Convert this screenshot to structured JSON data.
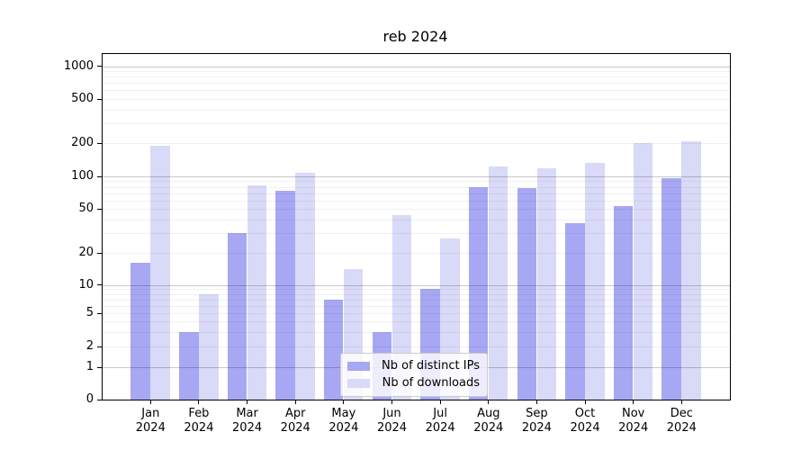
{
  "title": "reb 2024",
  "chart_data": {
    "type": "bar",
    "title": "reb 2024",
    "months": [
      "Jan",
      "Feb",
      "Mar",
      "Apr",
      "May",
      "Jun",
      "Jul",
      "Aug",
      "Sep",
      "Oct",
      "Nov",
      "Dec"
    ],
    "year_label": "2024",
    "series": [
      {
        "name": "Nb of distinct IPs",
        "color": "#a7a7f3",
        "values": [
          16,
          3,
          30,
          74,
          7,
          3,
          9,
          79,
          78,
          37,
          53,
          96
        ]
      },
      {
        "name": "Nb of downloads",
        "color": "#d9d9f8",
        "values": [
          190,
          8,
          83,
          107,
          14,
          44,
          27,
          124,
          119,
          132,
          200,
          208
        ]
      }
    ],
    "y_axis": {
      "scale": "symlog",
      "ticks": [
        0,
        1,
        2,
        5,
        10,
        20,
        50,
        100,
        200,
        500,
        1000
      ],
      "ylim": [
        0,
        1300
      ]
    },
    "x_axis": {
      "tick_line1": "month",
      "tick_line2": "2024"
    },
    "legend": {
      "position": "lower center",
      "entries": [
        "Nb of distinct IPs",
        "Nb of downloads"
      ]
    },
    "grid": {
      "major_color": "#c9c9c9",
      "minor_color": "#ebebeb",
      "major_lines": [
        1,
        10,
        100,
        1000
      ],
      "minor_lines": [
        2,
        3,
        4,
        5,
        6,
        7,
        8,
        9,
        20,
        30,
        40,
        50,
        60,
        70,
        80,
        90,
        200,
        300,
        400,
        500,
        600,
        700,
        800,
        900
      ]
    }
  }
}
